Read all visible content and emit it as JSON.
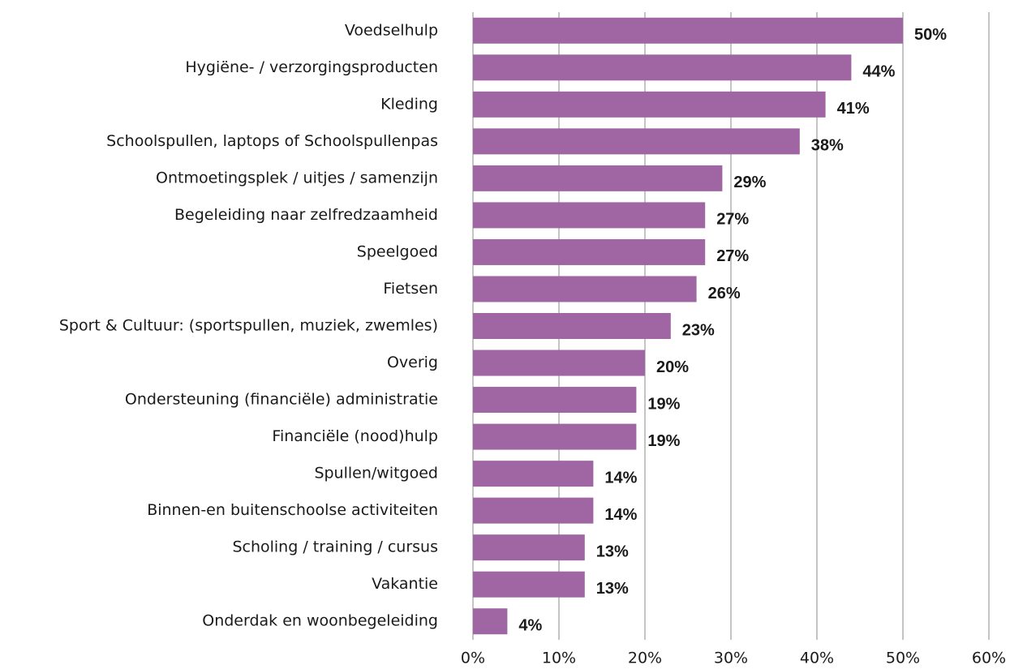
{
  "chart_data": {
    "type": "bar",
    "orientation": "horizontal",
    "categories": [
      "Voedselhulp",
      "Hygiëne- / verzorgingsproducten",
      "Kleding",
      "Schoolspullen, laptops of Schoolspullenpas",
      "Ontmoetingsplek / uitjes / samenzijn",
      "Begeleiding naar zelfredzaamheid",
      "Speelgoed",
      "Fietsen",
      "Sport & Cultuur: (sportspullen, muziek, zwemles)",
      "Overig",
      "Ondersteuning (financiële) administratie",
      "Financiële (nood)hulp",
      "Spullen/witgoed",
      "Binnen-en buitenschoolse activiteiten",
      "Scholing / training / cursus",
      "Vakantie",
      "Onderdak en woonbegeleiding"
    ],
    "values": [
      50,
      44,
      41,
      38,
      29,
      27,
      27,
      26,
      23,
      20,
      19,
      19,
      14,
      14,
      13,
      13,
      4
    ],
    "value_labels": [
      "50%",
      "44%",
      "41%",
      "38%",
      "29%",
      "27%",
      "27%",
      "26%",
      "23%",
      "20%",
      "19%",
      "19%",
      "14%",
      "14%",
      "13%",
      "13%",
      "4%"
    ],
    "color": "#a066a3",
    "xlim": [
      0,
      60
    ],
    "xticks": [
      {
        "value": 0,
        "label": "0%"
      },
      {
        "value": 10,
        "label": "10%"
      },
      {
        "value": 20,
        "label": "20%"
      },
      {
        "value": 30,
        "label": "30%"
      },
      {
        "value": 40,
        "label": "40%"
      },
      {
        "value": 50,
        "label": "50%"
      },
      {
        "value": 60,
        "label": "60%"
      }
    ],
    "grid": true
  }
}
